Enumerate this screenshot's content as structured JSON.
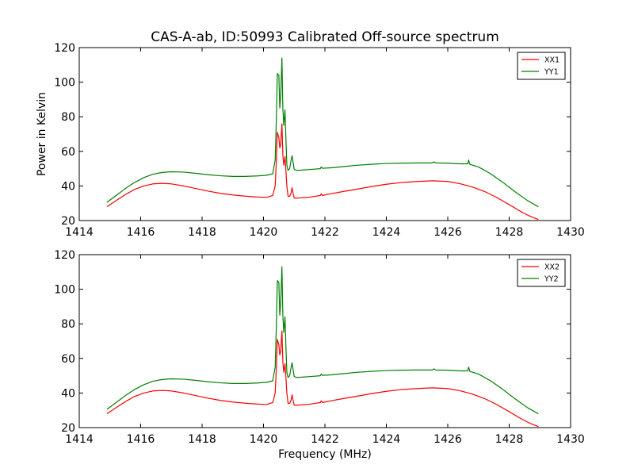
{
  "figure": {
    "title": "CAS-A-ab, ID:50993 Calibrated Off-source spectrum",
    "ylabel": "Power in Kelvin",
    "xlabel": "Frequency (MHz)"
  },
  "chart_data": [
    {
      "type": "line",
      "title": "CAS-A-ab, ID:50993 Calibrated Off-source spectrum",
      "xlabel": "",
      "ylabel": "Power in Kelvin",
      "xlim": [
        1414,
        1430
      ],
      "ylim": [
        20,
        120
      ],
      "xticks": [
        "1414",
        "1416",
        "1418",
        "1420",
        "1422",
        "1424",
        "1426",
        "1428",
        "1430"
      ],
      "yticks": [
        "20",
        "40",
        "60",
        "80",
        "100",
        "120"
      ],
      "grid": false,
      "legend": "top-right",
      "series": [
        {
          "name": "XX1",
          "color": "#ff0000",
          "x": [
            1414.9,
            1415.2,
            1415.5,
            1415.8,
            1416.1,
            1416.4,
            1416.7,
            1417.0,
            1417.4,
            1417.8,
            1418.2,
            1418.6,
            1419.0,
            1419.4,
            1419.8,
            1420.1,
            1420.3,
            1420.38,
            1420.42,
            1420.45,
            1420.5,
            1420.53,
            1420.56,
            1420.6,
            1420.63,
            1420.66,
            1420.7,
            1420.73,
            1420.76,
            1420.8,
            1420.85,
            1420.9,
            1420.93,
            1420.96,
            1421.0,
            1421.1,
            1421.5,
            1421.85,
            1421.88,
            1421.92,
            1422.2,
            1422.6,
            1423.0,
            1423.5,
            1424.0,
            1424.5,
            1425.0,
            1425.5,
            1426.0,
            1426.4,
            1426.8,
            1427.2,
            1427.6,
            1428.0,
            1428.4,
            1428.7,
            1428.95
          ],
          "y": [
            28,
            31.5,
            35,
            38,
            40,
            41.2,
            41.5,
            41.2,
            40,
            38.5,
            37,
            35.7,
            34.8,
            34.1,
            33.6,
            33.4,
            34.5,
            40,
            55,
            71,
            68,
            62,
            64,
            76,
            58,
            52,
            57,
            49,
            40,
            34,
            34,
            36,
            39,
            36,
            33,
            33,
            33.5,
            34.5,
            35.5,
            34.5,
            35.5,
            36.8,
            38,
            39.6,
            41,
            42,
            42.6,
            43,
            42.6,
            41.3,
            39.4,
            36.8,
            33.3,
            29.2,
            25,
            22.3,
            20.6
          ]
        },
        {
          "name": "YY1",
          "color": "#008000",
          "x": [
            1414.9,
            1415.2,
            1415.5,
            1415.8,
            1416.1,
            1416.4,
            1416.7,
            1417.0,
            1417.4,
            1417.8,
            1418.2,
            1418.6,
            1419.0,
            1419.4,
            1419.8,
            1420.1,
            1420.3,
            1420.38,
            1420.42,
            1420.45,
            1420.5,
            1420.53,
            1420.56,
            1420.6,
            1420.63,
            1420.66,
            1420.7,
            1420.73,
            1420.76,
            1420.8,
            1420.85,
            1420.9,
            1420.93,
            1420.96,
            1421.0,
            1421.1,
            1421.5,
            1421.85,
            1421.88,
            1421.92,
            1422.2,
            1422.6,
            1423.0,
            1423.5,
            1424.0,
            1424.5,
            1425.0,
            1425.5,
            1425.55,
            1425.6,
            1426.0,
            1426.4,
            1426.65,
            1426.68,
            1426.72,
            1427.0,
            1427.4,
            1427.8,
            1428.2,
            1428.6,
            1428.95
          ],
          "y": [
            30.5,
            34.5,
            38.5,
            42,
            44.8,
            46.8,
            47.8,
            48.2,
            48,
            47.3,
            46.5,
            45.9,
            45.5,
            45.5,
            45.8,
            46.2,
            47,
            55,
            80,
            105,
            104,
            85,
            92,
            114,
            85,
            75,
            84,
            67,
            52,
            49,
            50,
            55,
            57.5,
            54,
            49.5,
            49,
            49.5,
            50,
            51,
            50.2,
            50.5,
            51.2,
            51.9,
            52.5,
            53,
            53.2,
            53.3,
            53.3,
            54,
            53.3,
            53.2,
            52.8,
            52.8,
            55,
            52.5,
            51,
            47,
            42,
            36.5,
            31.5,
            28
          ]
        }
      ]
    },
    {
      "type": "line",
      "title": "",
      "xlabel": "Frequency (MHz)",
      "ylabel": "",
      "xlim": [
        1414,
        1430
      ],
      "ylim": [
        20,
        120
      ],
      "xticks": [
        "1414",
        "1416",
        "1418",
        "1420",
        "1422",
        "1424",
        "1426",
        "1428",
        "1430"
      ],
      "yticks": [
        "20",
        "40",
        "60",
        "80",
        "100",
        "120"
      ],
      "grid": false,
      "legend": "top-right",
      "series": [
        {
          "name": "XX2",
          "color": "#ff0000",
          "x": [
            1414.9,
            1415.2,
            1415.5,
            1415.8,
            1416.1,
            1416.4,
            1416.7,
            1417.0,
            1417.4,
            1417.8,
            1418.2,
            1418.6,
            1419.0,
            1419.4,
            1419.8,
            1420.1,
            1420.3,
            1420.38,
            1420.42,
            1420.45,
            1420.5,
            1420.53,
            1420.56,
            1420.6,
            1420.63,
            1420.66,
            1420.7,
            1420.73,
            1420.76,
            1420.8,
            1420.85,
            1420.9,
            1420.93,
            1420.96,
            1421.0,
            1421.1,
            1421.5,
            1421.85,
            1421.88,
            1421.92,
            1422.2,
            1422.6,
            1423.0,
            1423.5,
            1424.0,
            1424.5,
            1425.0,
            1425.5,
            1426.0,
            1426.4,
            1426.8,
            1427.2,
            1427.6,
            1428.0,
            1428.4,
            1428.7,
            1428.95
          ],
          "y": [
            28,
            31.5,
            35,
            38,
            40,
            41.2,
            41.5,
            41.2,
            40,
            38.5,
            37,
            35.7,
            34.8,
            34.1,
            33.6,
            33.4,
            34.5,
            40,
            55,
            71,
            68,
            62,
            64,
            76,
            58,
            52,
            57,
            49,
            40,
            34,
            34,
            36,
            39,
            36,
            33,
            33,
            33.5,
            34.5,
            35.5,
            34.5,
            35.5,
            36.8,
            38,
            39.6,
            41,
            42,
            42.6,
            43,
            42.6,
            41.3,
            39.4,
            36.8,
            33.3,
            29.2,
            25,
            22.3,
            20.6
          ]
        },
        {
          "name": "YY2",
          "color": "#008000",
          "x": [
            1414.9,
            1415.2,
            1415.5,
            1415.8,
            1416.1,
            1416.4,
            1416.7,
            1417.0,
            1417.4,
            1417.8,
            1418.2,
            1418.6,
            1419.0,
            1419.4,
            1419.8,
            1420.1,
            1420.3,
            1420.38,
            1420.42,
            1420.45,
            1420.5,
            1420.53,
            1420.56,
            1420.6,
            1420.63,
            1420.66,
            1420.7,
            1420.73,
            1420.76,
            1420.8,
            1420.85,
            1420.9,
            1420.93,
            1420.96,
            1421.0,
            1421.1,
            1421.5,
            1421.85,
            1421.88,
            1421.92,
            1422.2,
            1422.6,
            1423.0,
            1423.5,
            1424.0,
            1424.5,
            1425.0,
            1425.5,
            1425.55,
            1425.6,
            1426.0,
            1426.4,
            1426.65,
            1426.68,
            1426.72,
            1427.0,
            1427.4,
            1427.8,
            1428.2,
            1428.6,
            1428.95
          ],
          "y": [
            30.5,
            34.5,
            38.5,
            42,
            44.8,
            46.8,
            47.8,
            48.2,
            48,
            47.3,
            46.5,
            45.9,
            45.5,
            45.5,
            45.8,
            46.2,
            47,
            55,
            80,
            105,
            104,
            85,
            92,
            113,
            85,
            75,
            84,
            67,
            52,
            49,
            50,
            55,
            57.5,
            54,
            49.5,
            49,
            49.5,
            50,
            51,
            50.2,
            50.5,
            51.2,
            51.9,
            52.5,
            53,
            53.2,
            53.3,
            53.3,
            54,
            53.3,
            53.2,
            52.8,
            52.8,
            55,
            52.5,
            51,
            47,
            42,
            36.5,
            31.5,
            28
          ]
        }
      ]
    }
  ]
}
